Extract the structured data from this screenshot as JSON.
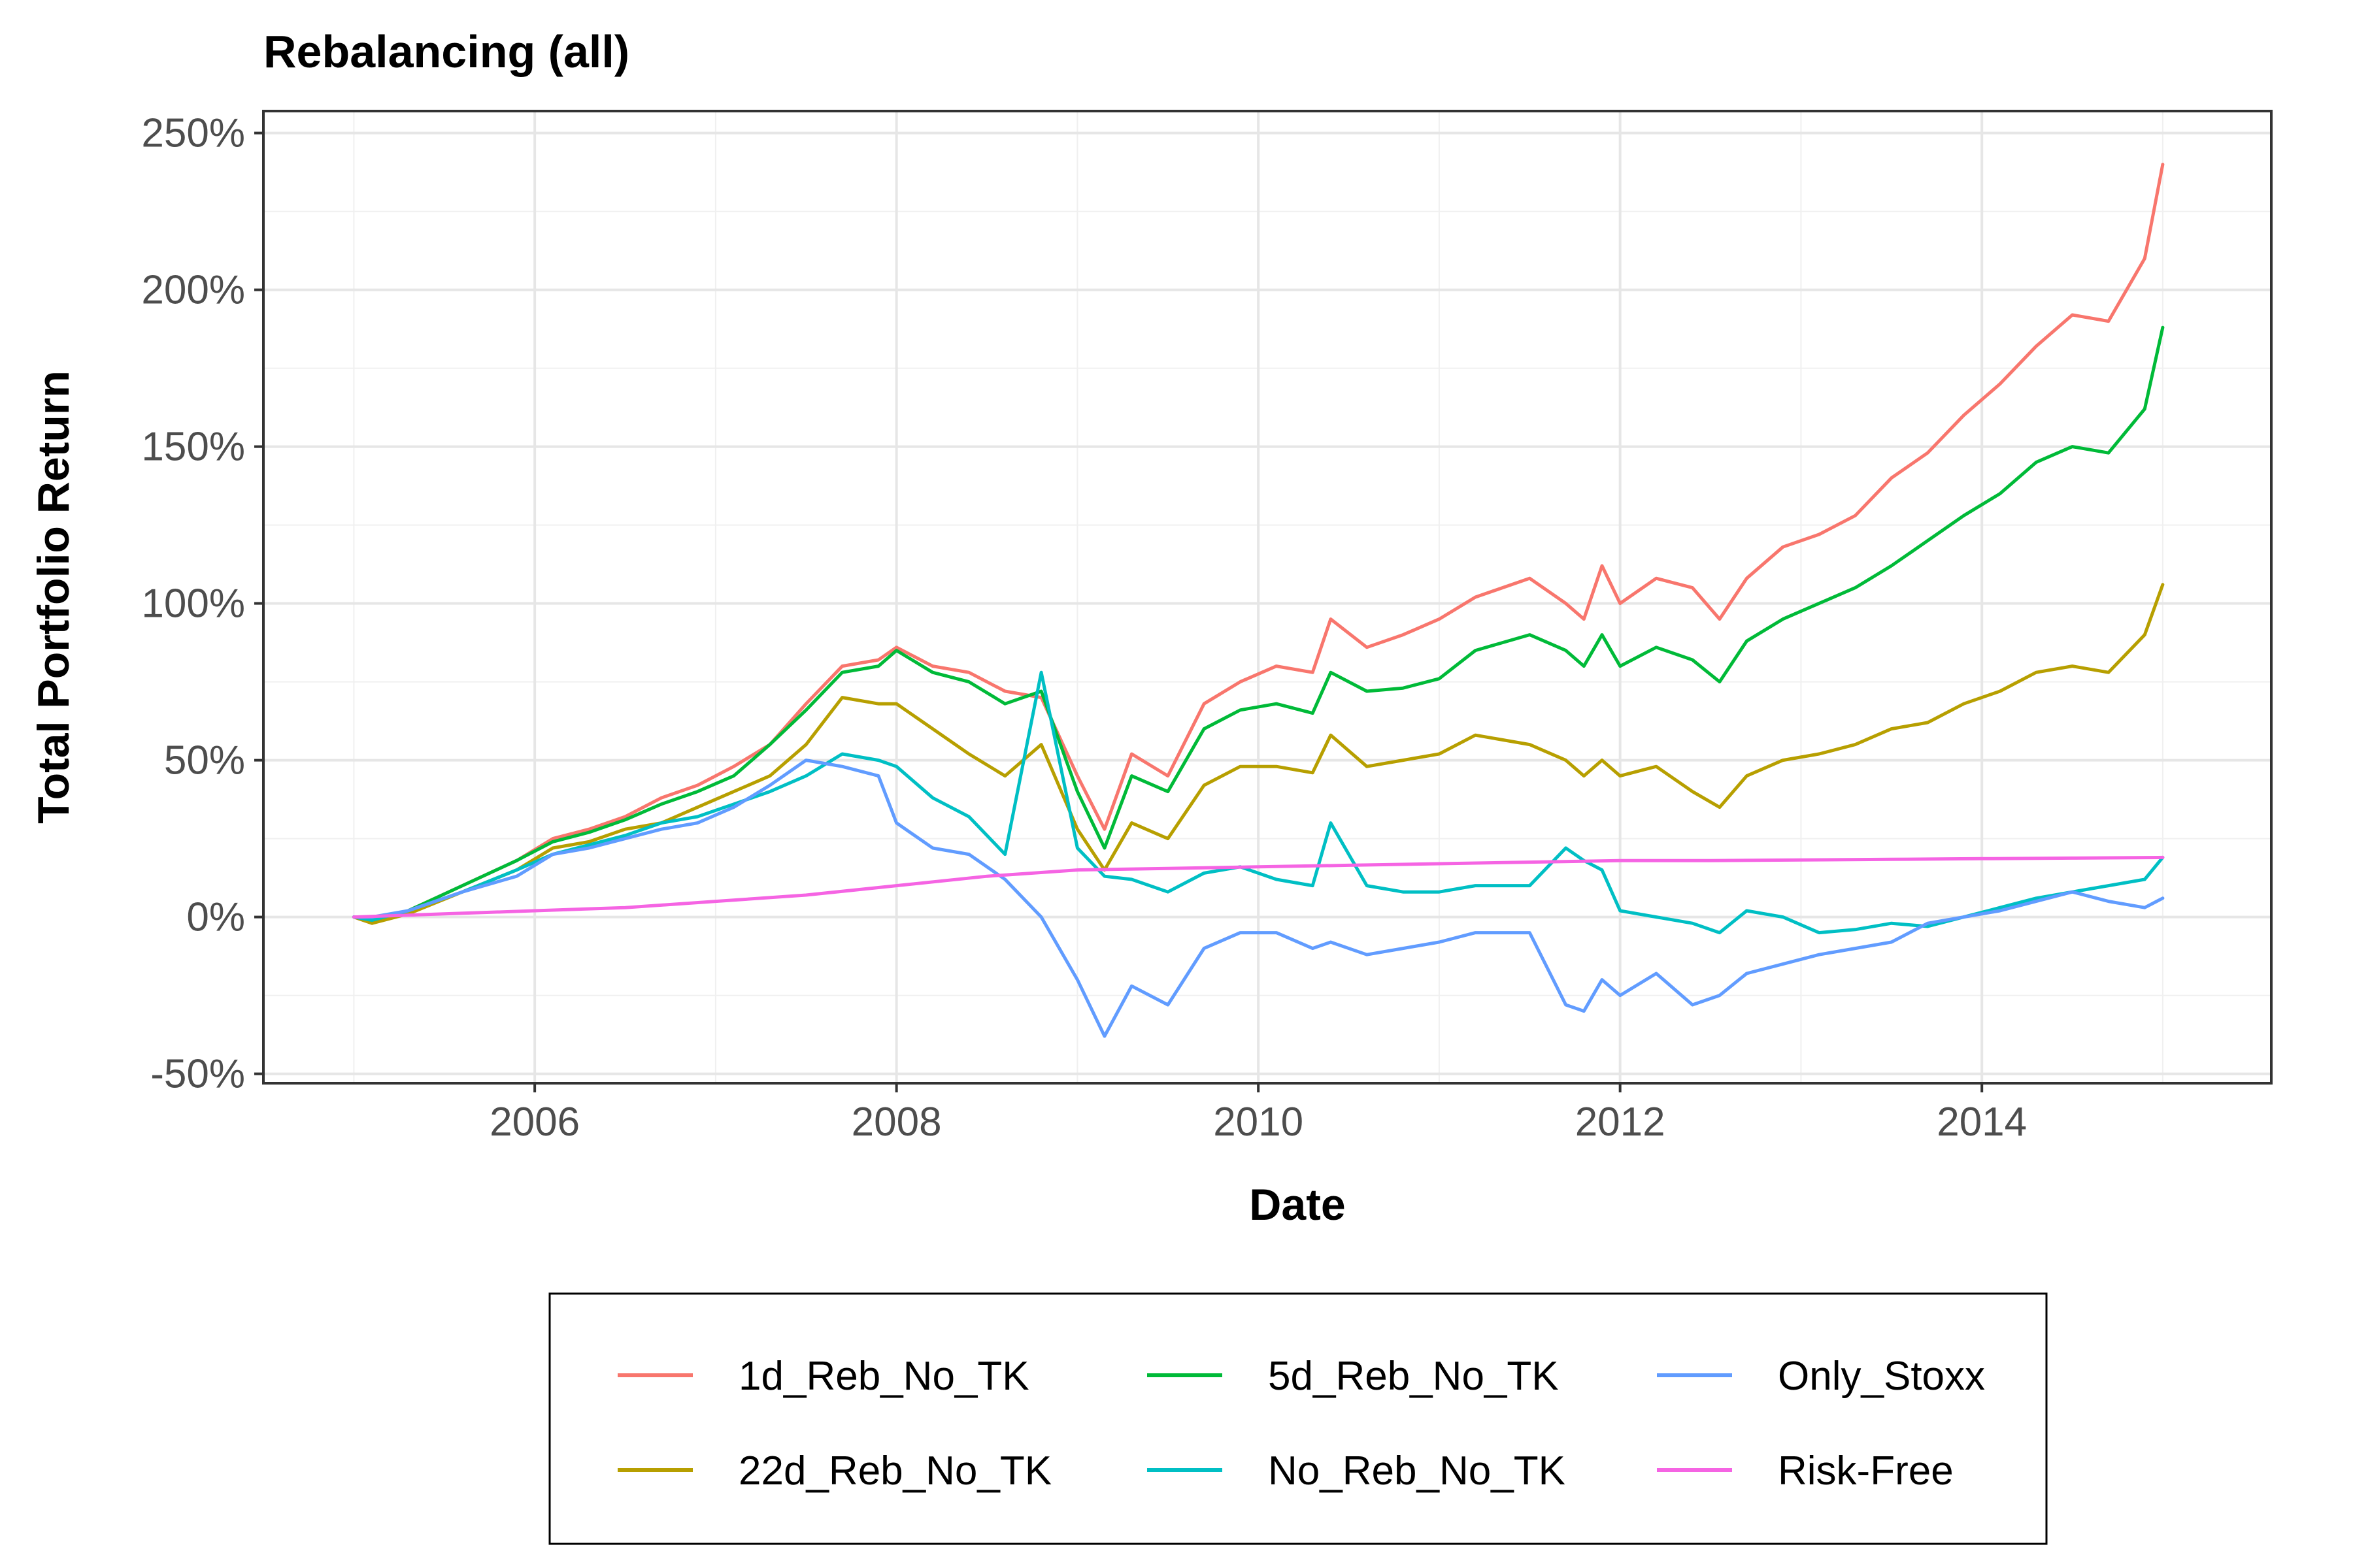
{
  "chart_data": {
    "type": "line",
    "title": "Rebalancing (all)",
    "xlabel": "Date",
    "ylabel": "Total Portfolio Return",
    "x_type": "year",
    "xlim": [
      2004.5,
      2015.6
    ],
    "ylim": [
      -53,
      257
    ],
    "x_ticks": [
      2006,
      2008,
      2010,
      2012,
      2014
    ],
    "x_tick_labels": [
      "2006",
      "2008",
      "2010",
      "2012",
      "2014"
    ],
    "y_ticks": [
      -50,
      0,
      50,
      100,
      150,
      200,
      250
    ],
    "y_tick_labels": [
      "-50%",
      "0%",
      "50%",
      "100%",
      "150%",
      "200%",
      "250%"
    ],
    "grid": true,
    "legend_position": "bottom",
    "series": [
      {
        "name": "1d_Reb_No_TK",
        "color": "#F8766D",
        "points": [
          [
            2005.0,
            0
          ],
          [
            2005.1,
            -2
          ],
          [
            2005.3,
            2
          ],
          [
            2005.6,
            10
          ],
          [
            2005.9,
            18
          ],
          [
            2006.1,
            25
          ],
          [
            2006.3,
            28
          ],
          [
            2006.5,
            32
          ],
          [
            2006.7,
            38
          ],
          [
            2006.9,
            42
          ],
          [
            2007.1,
            48
          ],
          [
            2007.3,
            55
          ],
          [
            2007.5,
            68
          ],
          [
            2007.7,
            80
          ],
          [
            2007.9,
            82
          ],
          [
            2008.0,
            86
          ],
          [
            2008.2,
            80
          ],
          [
            2008.4,
            78
          ],
          [
            2008.6,
            72
          ],
          [
            2008.8,
            70
          ],
          [
            2009.0,
            45
          ],
          [
            2009.15,
            28
          ],
          [
            2009.3,
            52
          ],
          [
            2009.5,
            45
          ],
          [
            2009.7,
            68
          ],
          [
            2009.9,
            75
          ],
          [
            2010.1,
            80
          ],
          [
            2010.3,
            78
          ],
          [
            2010.4,
            95
          ],
          [
            2010.6,
            86
          ],
          [
            2010.8,
            90
          ],
          [
            2011.0,
            95
          ],
          [
            2011.2,
            102
          ],
          [
            2011.5,
            108
          ],
          [
            2011.7,
            100
          ],
          [
            2011.8,
            95
          ],
          [
            2011.9,
            112
          ],
          [
            2012.0,
            100
          ],
          [
            2012.2,
            108
          ],
          [
            2012.4,
            105
          ],
          [
            2012.55,
            95
          ],
          [
            2012.7,
            108
          ],
          [
            2012.9,
            118
          ],
          [
            2013.1,
            122
          ],
          [
            2013.3,
            128
          ],
          [
            2013.5,
            140
          ],
          [
            2013.7,
            148
          ],
          [
            2013.9,
            160
          ],
          [
            2014.1,
            170
          ],
          [
            2014.3,
            182
          ],
          [
            2014.5,
            192
          ],
          [
            2014.7,
            190
          ],
          [
            2014.9,
            210
          ],
          [
            2015.0,
            240
          ]
        ]
      },
      {
        "name": "22d_Reb_No_TK",
        "color": "#B79F00",
        "points": [
          [
            2005.0,
            0
          ],
          [
            2005.1,
            -2
          ],
          [
            2005.3,
            1
          ],
          [
            2005.6,
            8
          ],
          [
            2005.9,
            15
          ],
          [
            2006.1,
            22
          ],
          [
            2006.3,
            24
          ],
          [
            2006.5,
            28
          ],
          [
            2006.7,
            30
          ],
          [
            2006.9,
            35
          ],
          [
            2007.1,
            40
          ],
          [
            2007.3,
            45
          ],
          [
            2007.5,
            55
          ],
          [
            2007.7,
            70
          ],
          [
            2007.9,
            68
          ],
          [
            2008.0,
            68
          ],
          [
            2008.2,
            60
          ],
          [
            2008.4,
            52
          ],
          [
            2008.6,
            45
          ],
          [
            2008.8,
            55
          ],
          [
            2009.0,
            28
          ],
          [
            2009.15,
            15
          ],
          [
            2009.3,
            30
          ],
          [
            2009.5,
            25
          ],
          [
            2009.7,
            42
          ],
          [
            2009.9,
            48
          ],
          [
            2010.1,
            48
          ],
          [
            2010.3,
            46
          ],
          [
            2010.4,
            58
          ],
          [
            2010.6,
            48
          ],
          [
            2010.8,
            50
          ],
          [
            2011.0,
            52
          ],
          [
            2011.2,
            58
          ],
          [
            2011.5,
            55
          ],
          [
            2011.7,
            50
          ],
          [
            2011.8,
            45
          ],
          [
            2011.9,
            50
          ],
          [
            2012.0,
            45
          ],
          [
            2012.2,
            48
          ],
          [
            2012.4,
            40
          ],
          [
            2012.55,
            35
          ],
          [
            2012.7,
            45
          ],
          [
            2012.9,
            50
          ],
          [
            2013.1,
            52
          ],
          [
            2013.3,
            55
          ],
          [
            2013.5,
            60
          ],
          [
            2013.7,
            62
          ],
          [
            2013.9,
            68
          ],
          [
            2014.1,
            72
          ],
          [
            2014.3,
            78
          ],
          [
            2014.5,
            80
          ],
          [
            2014.7,
            78
          ],
          [
            2014.9,
            90
          ],
          [
            2015.0,
            106
          ]
        ]
      },
      {
        "name": "5d_Reb_No_TK",
        "color": "#00BA38",
        "points": [
          [
            2005.0,
            0
          ],
          [
            2005.1,
            -1
          ],
          [
            2005.3,
            2
          ],
          [
            2005.6,
            10
          ],
          [
            2005.9,
            18
          ],
          [
            2006.1,
            24
          ],
          [
            2006.3,
            27
          ],
          [
            2006.5,
            31
          ],
          [
            2006.7,
            36
          ],
          [
            2006.9,
            40
          ],
          [
            2007.1,
            45
          ],
          [
            2007.3,
            55
          ],
          [
            2007.5,
            66
          ],
          [
            2007.7,
            78
          ],
          [
            2007.9,
            80
          ],
          [
            2008.0,
            85
          ],
          [
            2008.2,
            78
          ],
          [
            2008.4,
            75
          ],
          [
            2008.6,
            68
          ],
          [
            2008.8,
            72
          ],
          [
            2009.0,
            40
          ],
          [
            2009.15,
            22
          ],
          [
            2009.3,
            45
          ],
          [
            2009.5,
            40
          ],
          [
            2009.7,
            60
          ],
          [
            2009.9,
            66
          ],
          [
            2010.1,
            68
          ],
          [
            2010.3,
            65
          ],
          [
            2010.4,
            78
          ],
          [
            2010.6,
            72
          ],
          [
            2010.8,
            73
          ],
          [
            2011.0,
            76
          ],
          [
            2011.2,
            85
          ],
          [
            2011.5,
            90
          ],
          [
            2011.7,
            85
          ],
          [
            2011.8,
            80
          ],
          [
            2011.9,
            90
          ],
          [
            2012.0,
            80
          ],
          [
            2012.2,
            86
          ],
          [
            2012.4,
            82
          ],
          [
            2012.55,
            75
          ],
          [
            2012.7,
            88
          ],
          [
            2012.9,
            95
          ],
          [
            2013.1,
            100
          ],
          [
            2013.3,
            105
          ],
          [
            2013.5,
            112
          ],
          [
            2013.7,
            120
          ],
          [
            2013.9,
            128
          ],
          [
            2014.1,
            135
          ],
          [
            2014.3,
            145
          ],
          [
            2014.5,
            150
          ],
          [
            2014.7,
            148
          ],
          [
            2014.9,
            162
          ],
          [
            2015.0,
            188
          ]
        ]
      },
      {
        "name": "No_Reb_No_TK",
        "color": "#00BFC4",
        "points": [
          [
            2005.0,
            0
          ],
          [
            2005.1,
            -1
          ],
          [
            2005.3,
            2
          ],
          [
            2005.6,
            8
          ],
          [
            2005.9,
            15
          ],
          [
            2006.1,
            20
          ],
          [
            2006.3,
            23
          ],
          [
            2006.5,
            26
          ],
          [
            2006.7,
            30
          ],
          [
            2006.9,
            32
          ],
          [
            2007.1,
            36
          ],
          [
            2007.3,
            40
          ],
          [
            2007.5,
            45
          ],
          [
            2007.7,
            52
          ],
          [
            2007.9,
            50
          ],
          [
            2008.0,
            48
          ],
          [
            2008.2,
            38
          ],
          [
            2008.4,
            32
          ],
          [
            2008.6,
            20
          ],
          [
            2008.8,
            78
          ],
          [
            2009.0,
            22
          ],
          [
            2009.15,
            13
          ],
          [
            2009.3,
            12
          ],
          [
            2009.5,
            8
          ],
          [
            2009.7,
            14
          ],
          [
            2009.9,
            16
          ],
          [
            2010.1,
            12
          ],
          [
            2010.3,
            10
          ],
          [
            2010.4,
            30
          ],
          [
            2010.6,
            10
          ],
          [
            2010.8,
            8
          ],
          [
            2011.0,
            8
          ],
          [
            2011.2,
            10
          ],
          [
            2011.5,
            10
          ],
          [
            2011.7,
            22
          ],
          [
            2011.8,
            18
          ],
          [
            2011.9,
            15
          ],
          [
            2012.0,
            2
          ],
          [
            2012.2,
            0
          ],
          [
            2012.4,
            -2
          ],
          [
            2012.55,
            -5
          ],
          [
            2012.7,
            2
          ],
          [
            2012.9,
            0
          ],
          [
            2013.1,
            -5
          ],
          [
            2013.3,
            -4
          ],
          [
            2013.5,
            -2
          ],
          [
            2013.7,
            -3
          ],
          [
            2013.9,
            0
          ],
          [
            2014.1,
            3
          ],
          [
            2014.3,
            6
          ],
          [
            2014.5,
            8
          ],
          [
            2014.7,
            10
          ],
          [
            2014.9,
            12
          ],
          [
            2015.0,
            19
          ]
        ]
      },
      {
        "name": "Only_Stoxx",
        "color": "#619CFF",
        "points": [
          [
            2005.0,
            0
          ],
          [
            2005.1,
            0
          ],
          [
            2005.3,
            2
          ],
          [
            2005.6,
            8
          ],
          [
            2005.9,
            13
          ],
          [
            2006.1,
            20
          ],
          [
            2006.3,
            22
          ],
          [
            2006.5,
            25
          ],
          [
            2006.7,
            28
          ],
          [
            2006.9,
            30
          ],
          [
            2007.1,
            35
          ],
          [
            2007.3,
            42
          ],
          [
            2007.5,
            50
          ],
          [
            2007.7,
            48
          ],
          [
            2007.9,
            45
          ],
          [
            2008.0,
            30
          ],
          [
            2008.2,
            22
          ],
          [
            2008.4,
            20
          ],
          [
            2008.6,
            12
          ],
          [
            2008.8,
            0
          ],
          [
            2009.0,
            -20
          ],
          [
            2009.15,
            -38
          ],
          [
            2009.3,
            -22
          ],
          [
            2009.5,
            -28
          ],
          [
            2009.7,
            -10
          ],
          [
            2009.9,
            -5
          ],
          [
            2010.1,
            -5
          ],
          [
            2010.3,
            -10
          ],
          [
            2010.4,
            -8
          ],
          [
            2010.6,
            -12
          ],
          [
            2010.8,
            -10
          ],
          [
            2011.0,
            -8
          ],
          [
            2011.2,
            -5
          ],
          [
            2011.5,
            -5
          ],
          [
            2011.7,
            -28
          ],
          [
            2011.8,
            -30
          ],
          [
            2011.9,
            -20
          ],
          [
            2012.0,
            -25
          ],
          [
            2012.2,
            -18
          ],
          [
            2012.4,
            -28
          ],
          [
            2012.55,
            -25
          ],
          [
            2012.7,
            -18
          ],
          [
            2012.9,
            -15
          ],
          [
            2013.1,
            -12
          ],
          [
            2013.3,
            -10
          ],
          [
            2013.5,
            -8
          ],
          [
            2013.7,
            -2
          ],
          [
            2013.9,
            0
          ],
          [
            2014.1,
            2
          ],
          [
            2014.3,
            5
          ],
          [
            2014.5,
            8
          ],
          [
            2014.7,
            5
          ],
          [
            2014.9,
            3
          ],
          [
            2015.0,
            6
          ]
        ]
      },
      {
        "name": "Risk-Free",
        "color": "#F564E3",
        "points": [
          [
            2005.0,
            0
          ],
          [
            2005.5,
            1
          ],
          [
            2006.0,
            2
          ],
          [
            2006.5,
            3
          ],
          [
            2007.0,
            5
          ],
          [
            2007.5,
            7
          ],
          [
            2008.0,
            10
          ],
          [
            2008.5,
            13
          ],
          [
            2009.0,
            15
          ],
          [
            2009.5,
            15.5
          ],
          [
            2010.0,
            16
          ],
          [
            2010.5,
            16.5
          ],
          [
            2011.0,
            17
          ],
          [
            2011.5,
            17.5
          ],
          [
            2012.0,
            18
          ],
          [
            2012.5,
            18
          ],
          [
            2013.0,
            18.2
          ],
          [
            2013.5,
            18.4
          ],
          [
            2014.0,
            18.6
          ],
          [
            2014.5,
            18.8
          ],
          [
            2015.0,
            19
          ]
        ]
      }
    ]
  }
}
